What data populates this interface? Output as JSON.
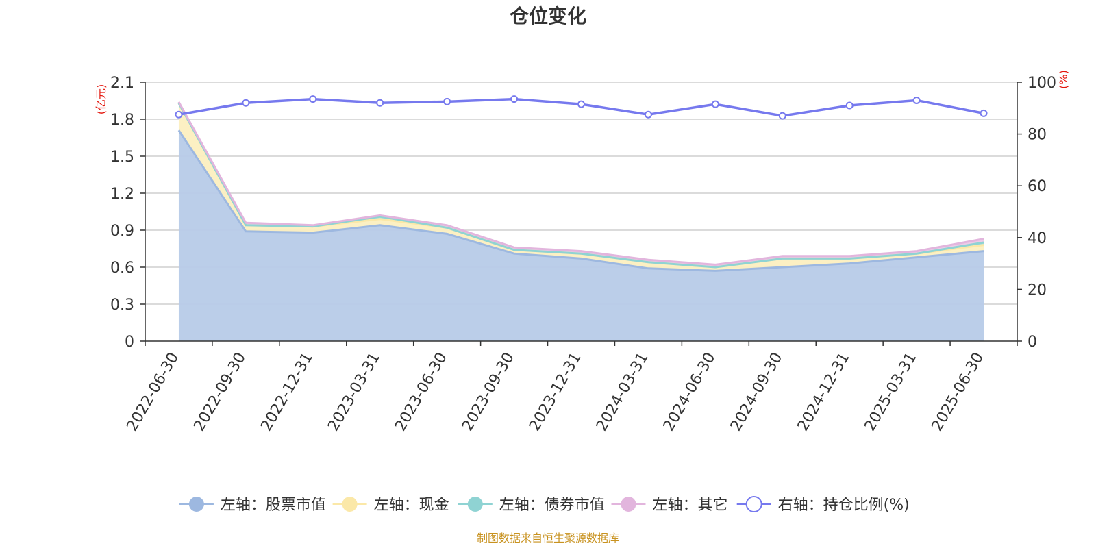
{
  "chart_data": {
    "type": "area",
    "title": "仓位变化",
    "left_axis_unit": "(亿元)",
    "right_axis_unit": "(%)",
    "categories": [
      "2022-06-30",
      "2022-09-30",
      "2022-12-31",
      "2023-03-31",
      "2023-06-30",
      "2023-09-30",
      "2023-12-31",
      "2024-03-31",
      "2024-06-30",
      "2024-09-30",
      "2024-12-31",
      "2025-03-31",
      "2025-06-30"
    ],
    "left_ylim": [
      0,
      2.1
    ],
    "left_ticks": [
      0,
      0.3,
      0.6,
      0.9,
      1.2,
      1.5,
      1.8,
      2.1
    ],
    "left_tick_labels": [
      "0",
      "0.3",
      "0.6",
      "0.9",
      "1.2",
      "1.5",
      "1.8",
      "2.1"
    ],
    "right_ylim": [
      0,
      100
    ],
    "right_ticks": [
      0,
      20,
      40,
      60,
      80,
      100
    ],
    "right_tick_labels": [
      "0",
      "20",
      "40",
      "60",
      "80",
      "100"
    ],
    "grid": true,
    "stacked_series": [
      {
        "name": "左轴：股票市值",
        "color": "#9db8e0",
        "fill": "#b7cbe8",
        "values": [
          1.71,
          0.89,
          0.88,
          0.94,
          0.87,
          0.71,
          0.67,
          0.59,
          0.57,
          0.6,
          0.63,
          0.68,
          0.73
        ]
      },
      {
        "name": "左轴：现金",
        "color": "#fbe8a8",
        "fill": "#fcefc0",
        "values": [
          0.22,
          0.05,
          0.05,
          0.05,
          0.05,
          0.03,
          0.04,
          0.05,
          0.03,
          0.07,
          0.04,
          0.03,
          0.05
        ]
      },
      {
        "name": "左轴：债券市值",
        "color": "#8fd3d3",
        "fill": "#a8dede",
        "values": [
          0.0,
          0.0,
          0.0,
          0.02,
          0.0,
          0.0,
          0.0,
          0.0,
          0.0,
          0.0,
          0.0,
          0.0,
          0.02
        ]
      },
      {
        "name": "左轴：其它",
        "color": "#e2b5dd",
        "fill": "#ecc8e6",
        "values": [
          0.01,
          0.02,
          0.01,
          0.01,
          0.02,
          0.02,
          0.02,
          0.02,
          0.02,
          0.02,
          0.02,
          0.02,
          0.03
        ]
      }
    ],
    "line_series": {
      "name": "右轴：持仓比例(%)",
      "color": "#7679ee",
      "values": [
        87.5,
        92,
        93.5,
        92,
        92.5,
        93.5,
        91.5,
        87.5,
        91.5,
        87,
        91,
        93,
        88
      ]
    },
    "legend_position": "bottom"
  },
  "source_note": "制图数据来自恒生聚源数据库"
}
